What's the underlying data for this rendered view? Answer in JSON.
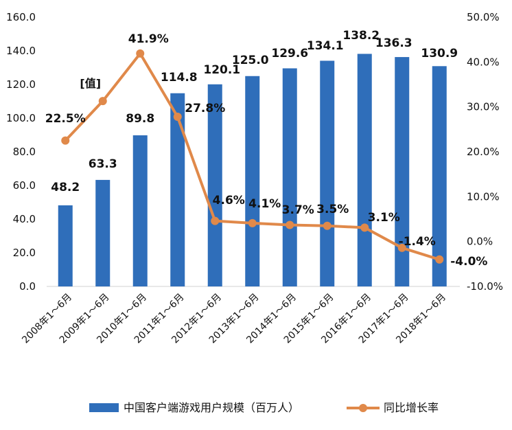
{
  "chart_data": {
    "type": "bar",
    "categories": [
      "2008年1～6月",
      "2009年1～6月",
      "2010年1～6月",
      "2011年1～6月",
      "2012年1～6月",
      "2013年1～6月",
      "2014年1～6月",
      "2015年1～6月",
      "2016年1～6月",
      "2017年1～6月",
      "2018年1～6月"
    ],
    "series": [
      {
        "name": "中国客户端游戏用户规模（百万人）",
        "type": "bar",
        "axis": "left",
        "color": "#2F6EBA",
        "values": [
          48.2,
          63.3,
          89.8,
          114.8,
          120.1,
          125.0,
          129.6,
          134.1,
          138.2,
          136.3,
          130.9
        ],
        "labels": [
          "48.2",
          "63.3",
          "89.8",
          "114.8",
          "120.1",
          "125.0",
          "129.6",
          "134.1",
          "138.2",
          "136.3",
          "130.9"
        ]
      },
      {
        "name": "同比增长率",
        "type": "line",
        "axis": "right",
        "color": "#E0894A",
        "values": [
          22.5,
          31.3,
          41.9,
          27.8,
          4.6,
          4.1,
          3.7,
          3.5,
          3.1,
          -1.4,
          -4.0
        ],
        "labels": [
          "22.5%",
          null,
          "41.9%",
          "27.8%",
          "4.6%",
          "4.1%",
          "3.7%",
          "3.5%",
          "3.1%",
          "-1.4%",
          "-4.0%"
        ]
      }
    ],
    "left_axis": {
      "ylim": [
        0,
        160
      ],
      "ticks": [
        "0.0",
        "20.0",
        "40.0",
        "60.0",
        "80.0",
        "100.0",
        "120.0",
        "140.0",
        "160.0"
      ]
    },
    "right_axis": {
      "ylim": [
        -10,
        50
      ],
      "ticks": [
        "-10.0%",
        "0.0%",
        "10.0%",
        "20.0%",
        "30.0%",
        "40.0%",
        "50.0%"
      ]
    },
    "annotation": "[值]",
    "legend_position": "bottom",
    "grid": false
  }
}
